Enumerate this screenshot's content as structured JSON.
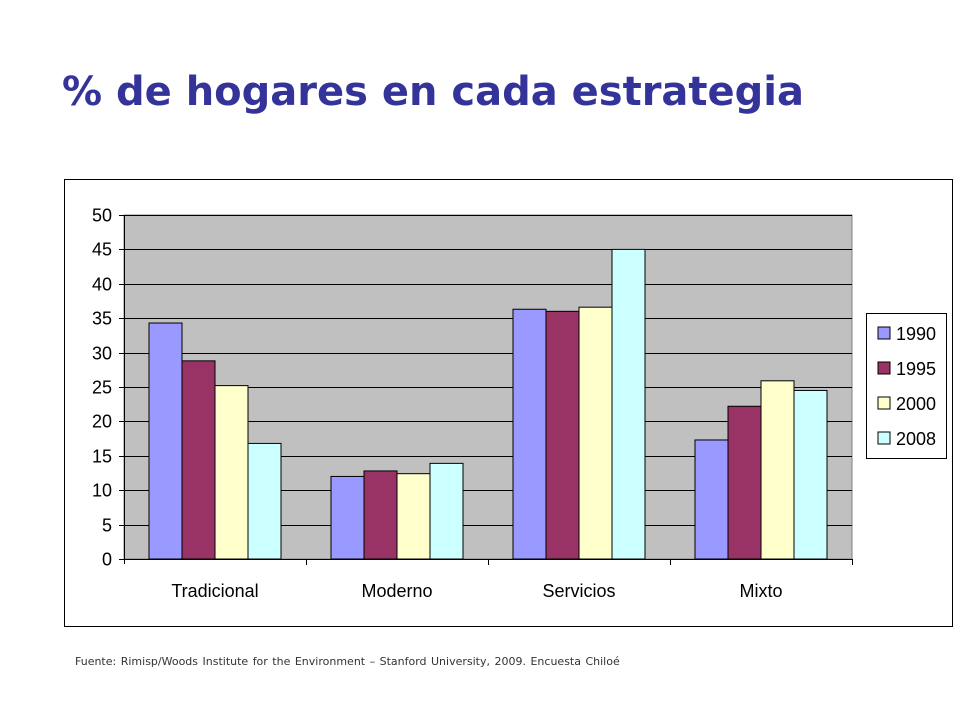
{
  "title": "% de hogares en cada estrategia",
  "source": "Fuente: Rimisp/Woods Institute for the Environment – Stanford University, 2009. Encuesta Chiloé",
  "colors": {
    "plot_background": "#C0C0C0",
    "gridline": "#000000",
    "title": "#333399"
  },
  "chart_data": {
    "type": "bar",
    "categories": [
      "Tradicional",
      "Moderno",
      "Servicios",
      "Mixto"
    ],
    "series": [
      {
        "name": "1990",
        "color": "#9999FF",
        "values": [
          34.3,
          12.0,
          36.3,
          17.3
        ]
      },
      {
        "name": "1995",
        "color": "#993366",
        "values": [
          28.8,
          12.8,
          36.0,
          22.2
        ]
      },
      {
        "name": "2000",
        "color": "#FFFFCC",
        "values": [
          25.2,
          12.4,
          36.6,
          25.9
        ]
      },
      {
        "name": "2008",
        "color": "#CCFFFF",
        "values": [
          16.8,
          13.9,
          45.0,
          24.5
        ]
      }
    ],
    "ylim": [
      0,
      50
    ],
    "yticks": [
      0,
      5,
      10,
      15,
      20,
      25,
      30,
      35,
      40,
      45,
      50
    ],
    "grid": true,
    "legend": "right",
    "xlabel": "",
    "ylabel": ""
  }
}
